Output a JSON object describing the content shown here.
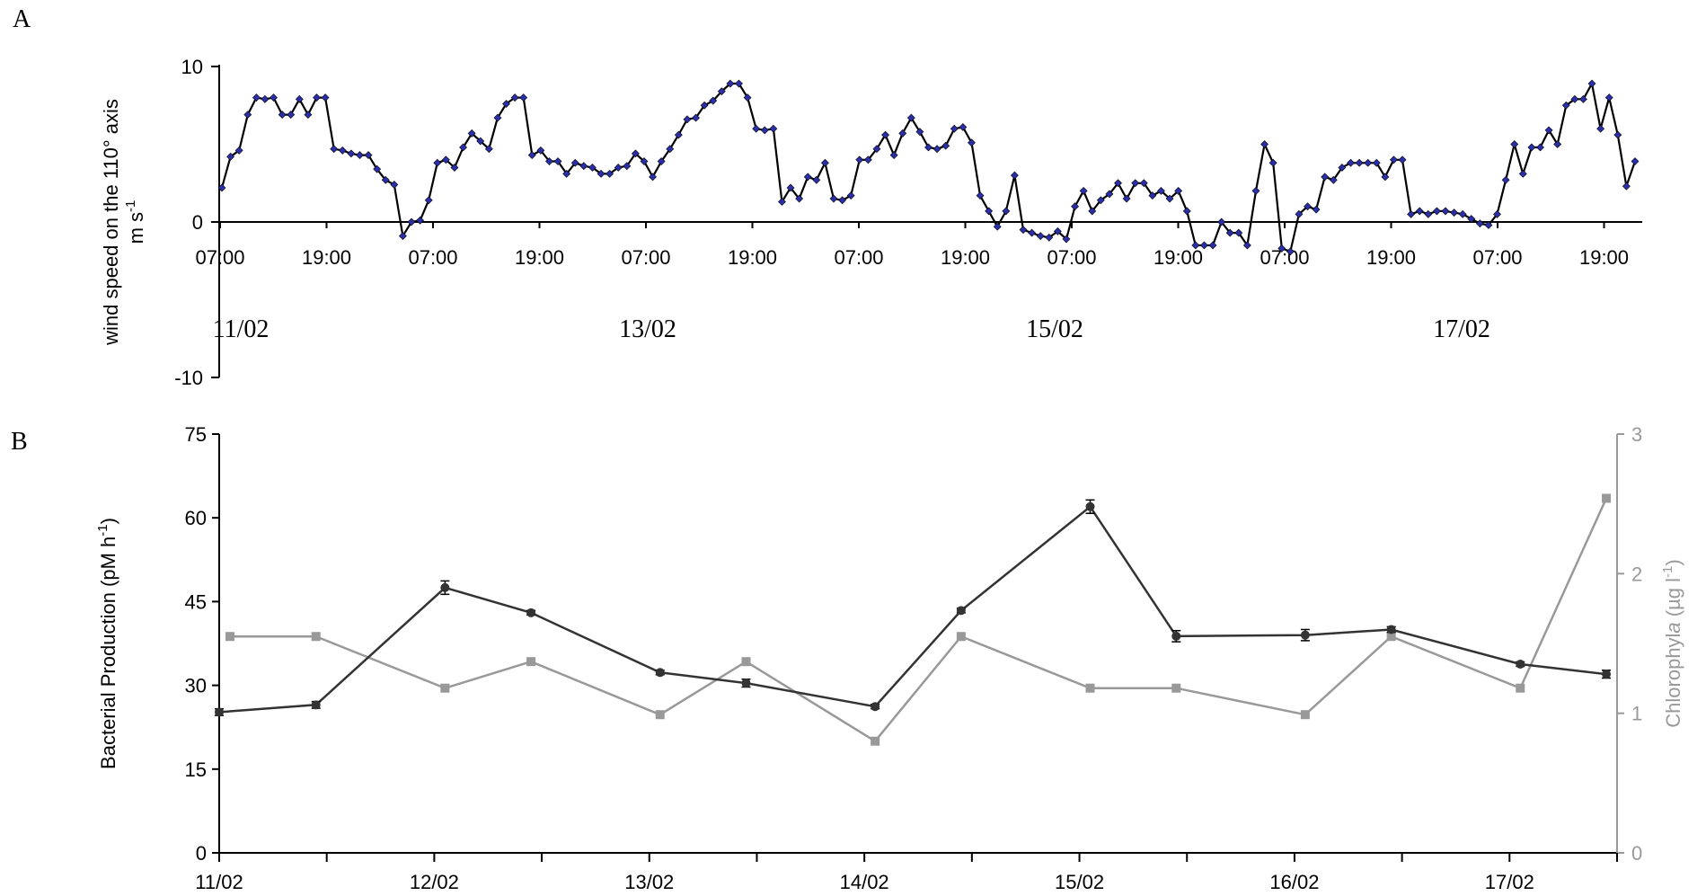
{
  "chart_data": [
    {
      "type": "line",
      "panel_label": "A",
      "ylabel": "wind speed on the 110° axis",
      "ylabel_unit": "m s",
      "ylabel_unit_sup": "-1",
      "ylim": [
        -10,
        10
      ],
      "yticks": [
        "10",
        "0",
        "-10"
      ],
      "time_tick_labels": [
        "07:00",
        "19:00",
        "07:00",
        "19:00",
        "07:00",
        "19:00",
        "07:00",
        "19:00",
        "07:00",
        "19:00",
        "07:00",
        "19:00",
        "07:00",
        "19:00"
      ],
      "date_labels": [
        "11/02",
        "13/02",
        "15/02",
        "17/02"
      ],
      "grid": false,
      "legend": "none",
      "marker_color": "#2a2fa8",
      "line_color": "#000000",
      "series": [
        {
          "values": [
            2.2,
            4.2,
            4.6,
            6.9,
            8.0,
            7.9,
            8.0,
            6.9,
            6.9,
            7.9,
            6.9,
            8.0,
            8.0,
            4.7,
            4.6,
            4.4,
            4.3,
            4.3,
            3.4,
            2.7,
            2.4,
            -0.9,
            0.0,
            0.1,
            1.4,
            3.8,
            4.0,
            3.5,
            4.8,
            5.7,
            5.2,
            4.7,
            6.7,
            7.6,
            8.0,
            8.0,
            4.3,
            4.6,
            3.9,
            3.9,
            3.1,
            3.8,
            3.6,
            3.5,
            3.1,
            3.1,
            3.5,
            3.6,
            4.4,
            3.9,
            2.9,
            3.9,
            4.7,
            5.6,
            6.6,
            6.7,
            7.5,
            7.8,
            8.4,
            8.9,
            8.9,
            8.0,
            6.0,
            5.9,
            6.0,
            1.3,
            2.2,
            1.5,
            2.9,
            2.7,
            3.8,
            1.5,
            1.4,
            1.7,
            4.0,
            4.0,
            4.7,
            5.6,
            4.3,
            5.7,
            6.7,
            5.8,
            4.8,
            4.7,
            4.9,
            6.0,
            6.1,
            5.1,
            1.7,
            0.7,
            -0.3,
            0.7,
            3.0,
            -0.5,
            -0.7,
            -0.9,
            -1.0,
            -0.6,
            -1.1,
            1.0,
            2.0,
            0.7,
            1.4,
            1.8,
            2.5,
            1.5,
            2.5,
            2.5,
            1.7,
            2.0,
            1.5,
            2.0,
            0.7,
            -1.5,
            -1.5,
            -1.5,
            0.0,
            -0.7,
            -0.7,
            -1.5,
            2.0,
            5.0,
            3.8,
            -1.7,
            -1.9,
            0.5,
            1.0,
            0.8,
            2.9,
            2.7,
            3.5,
            3.8,
            3.8,
            3.8,
            3.8,
            2.9,
            4.0,
            4.0,
            0.5,
            0.7,
            0.5,
            0.7,
            0.7,
            0.6,
            0.5,
            0.2,
            -0.1,
            -0.2,
            0.5,
            2.7,
            5.0,
            3.1,
            4.8,
            4.8,
            5.9,
            5.0,
            7.5,
            7.9,
            7.9,
            8.9,
            6.0,
            8.0,
            5.6,
            2.3,
            3.9
          ]
        }
      ]
    },
    {
      "type": "line",
      "panel_label": "B",
      "ylabel": "Bacterial Production (pM h",
      "ylabel_sup": "-1",
      "ylabel_close": ")",
      "ylim": [
        0,
        75
      ],
      "yticks": [
        "0",
        "15",
        "30",
        "45",
        "60",
        "75"
      ],
      "y2label_prefix": "Chlorophyl",
      "y2label_italic": "a",
      "y2label_unit": " (µg l",
      "y2label_sup": "-1",
      "y2label_close": ")",
      "y2lim": [
        0,
        3
      ],
      "y2ticks": [
        "0",
        "1",
        "2",
        "3"
      ],
      "categories": [
        "11/02",
        "12/02",
        "13/02",
        "14/02",
        "15/02",
        "16/02",
        "17/02"
      ],
      "grid": false,
      "legend": "none",
      "x_range": [
        0,
        6.5
      ],
      "series": [
        {
          "axis": "left",
          "color": "#333333",
          "marker": "circle",
          "x": [
            0,
            0.45,
            1.05,
            1.45,
            2.05,
            2.45,
            3.05,
            3.45,
            4.05,
            4.45,
            5.05,
            5.45,
            6.05,
            6.45
          ],
          "values": [
            25.2,
            26.5,
            47.5,
            43.0,
            32.3,
            30.4,
            26.2,
            43.4,
            62.0,
            38.8,
            39.0,
            40.0,
            33.8,
            32.0
          ],
          "errors": [
            0.6,
            0.6,
            1.2,
            0.4,
            0.4,
            0.7,
            0.4,
            0.4,
            1.2,
            1.0,
            1.0,
            0.5,
            0.4,
            0.7
          ]
        },
        {
          "axis": "right",
          "color": "#999999",
          "marker": "square",
          "x": [
            0.05,
            0.45,
            1.05,
            1.45,
            2.05,
            2.45,
            3.05,
            3.45,
            4.05,
            4.45,
            5.05,
            5.45,
            6.05,
            6.45
          ],
          "values": [
            1.55,
            1.55,
            1.18,
            1.37,
            0.99,
            1.37,
            0.8,
            1.55,
            1.18,
            1.18,
            0.99,
            1.55,
            1.18,
            2.54
          ]
        }
      ]
    }
  ]
}
